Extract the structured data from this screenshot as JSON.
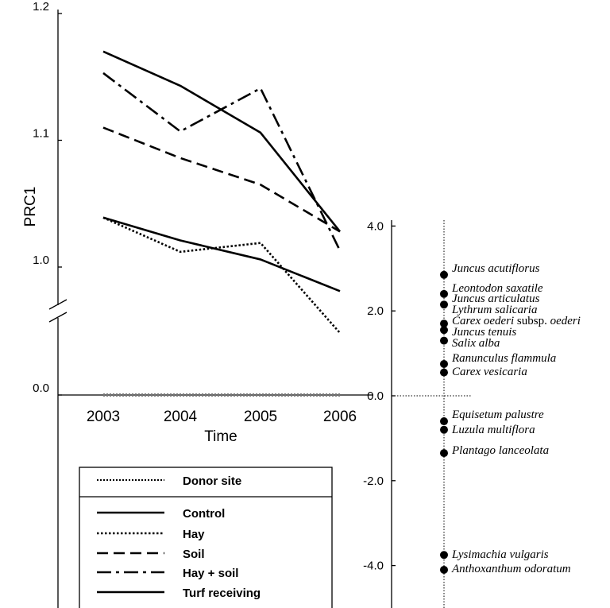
{
  "chart_data": [
    {
      "type": "line",
      "ylabel": "PRC1",
      "xlabel": "Time",
      "categories": [
        "2003",
        "2004",
        "2005",
        "2006"
      ],
      "y_ticks": [
        "0.0",
        "1.0",
        "1.1",
        "1.2"
      ],
      "y_axis_break": true,
      "legend_title_entry": "Donor site",
      "series": [
        {
          "name": "Donor site",
          "style": "dotted-gray",
          "values": [
            0.0,
            0.0,
            0.0,
            0.0
          ]
        },
        {
          "name": "Control",
          "style": "solid",
          "values": [
            1.039,
            1.021,
            1.006,
            0.981
          ]
        },
        {
          "name": "Hay",
          "style": "dotted",
          "values": [
            1.039,
            1.012,
            1.019,
            0.948
          ]
        },
        {
          "name": "Soil",
          "style": "dashed",
          "values": [
            1.11,
            1.086,
            1.065,
            1.028
          ]
        },
        {
          "name": "Hay + soil",
          "style": "dash-dot",
          "values": [
            1.153,
            1.107,
            1.141,
            1.013
          ]
        },
        {
          "name": "Turf receiving",
          "style": "solid",
          "values": [
            1.17,
            1.143,
            1.106,
            1.028
          ]
        }
      ],
      "grid": false,
      "legend_position": "bottom-left"
    },
    {
      "type": "scatter",
      "y_ticks": [
        "4.0",
        "2.0",
        "0.0",
        "-2.0",
        "-4.0"
      ],
      "ylim": [
        -4.8,
        4.0
      ],
      "species": [
        {
          "name": "Juncus acutiflorus",
          "score": 2.85
        },
        {
          "name": "Leontodon saxatile",
          "score": 2.4
        },
        {
          "name": "Juncus articulatus",
          "score": 2.15
        },
        {
          "name": "Lythrum salicaria",
          "score": 1.7
        },
        {
          "name": "Carex oederi",
          "suffix": " subsp. oederi",
          "score": 1.55
        },
        {
          "name": "Juncus tenuis",
          "score": 1.3
        },
        {
          "name": "Salix alba",
          "score": 1.45
        },
        {
          "name": "Ranunculus flammula",
          "score": 0.75
        },
        {
          "name": "Carex vesicaria",
          "score": 0.55
        },
        {
          "name": "Equisetum palustre",
          "score": -0.6
        },
        {
          "name": "Luzula multiflora",
          "score": -0.8
        },
        {
          "name": "Plantago lanceolata",
          "score": -1.35
        },
        {
          "name": "Lysimachia vulgaris",
          "score": -3.75
        },
        {
          "name": "Anthoxanthum odoratum",
          "score": -4.1
        }
      ]
    }
  ]
}
